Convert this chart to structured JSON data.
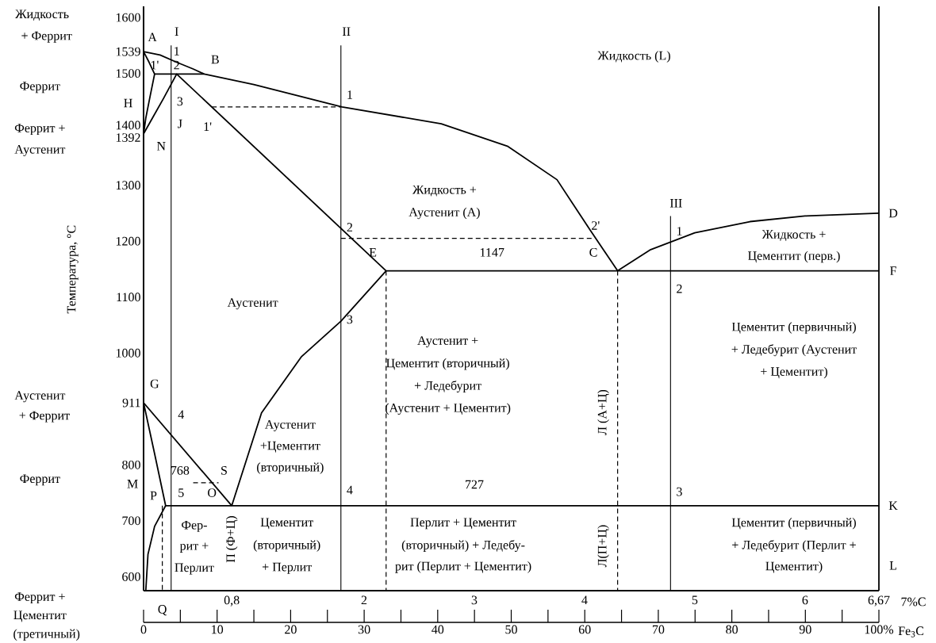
{
  "chart_data": {
    "type": "line",
    "xlabel": "7%C",
    "ylabel": "Температура, °C",
    "x2label": "Fe$_{3}$C",
    "xlim": [
      0,
      6.67
    ],
    "ylim": [
      575,
      1620
    ],
    "x2lim": [
      0,
      100
    ],
    "xticks": [
      {
        "value": 0.8,
        "label": "0,8"
      },
      2,
      3,
      4,
      5,
      6,
      {
        "value": 6.67,
        "label": "6,67"
      }
    ],
    "yticks": [
      600,
      700,
      800,
      911,
      1000,
      1100,
      1200,
      1300,
      1392,
      1400,
      1500,
      1539,
      1600
    ],
    "x2ticks": [
      0,
      10,
      20,
      30,
      40,
      50,
      60,
      70,
      80,
      90,
      {
        "value": 100,
        "label": "100%"
      }
    ],
    "marker": "none",
    "line_style": "solid",
    "series": [
      {
        "color": "#000000",
        "x": [
          0,
          0.15,
          0.3,
          0.45,
          0.55,
          1,
          1.8,
          2.7,
          3.3,
          3.75,
          4.05,
          4.3,
          4.6,
          5,
          5.5,
          6,
          6.67
        ],
        "values": [
          1539,
          1533,
          1520,
          1508,
          1499,
          1480,
          1440,
          1410,
          1370,
          1310,
          1220,
          1147,
          1185,
          1215,
          1235,
          1245,
          1250
        ]
      },
      {
        "color": "#000000",
        "x": [
          0,
          0.05,
          0.1,
          0.06,
          0.02,
          0
        ],
        "values": [
          1539,
          1520,
          1499,
          1460,
          1420,
          1392
        ]
      },
      {
        "color": "#000000",
        "x": [
          0.1,
          0.55
        ],
        "values": [
          1499,
          1499
        ]
      },
      {
        "color": "#000000",
        "x": [
          0,
          0.08,
          0.18,
          0.3,
          2.2,
          6.67
        ],
        "values": [
          1392,
          1420,
          1455,
          1499,
          1147,
          1147
        ]
      },
      {
        "color": "#000000",
        "x": [
          0.8,
          1.07,
          1.43,
          1.79,
          2.2
        ],
        "values": [
          727,
          893,
          993,
          1057,
          1147
        ]
      },
      {
        "color": "#000000",
        "x": [
          0,
          0.8
        ],
        "values": [
          911,
          727
        ]
      },
      {
        "color": "#000000",
        "x": [
          0,
          0.1,
          0.2,
          0.1,
          0.04,
          0.02
        ],
        "values": [
          911,
          820,
          727,
          690,
          640,
          575
        ]
      },
      {
        "color": "#000000",
        "x": [
          0.2,
          6.67
        ],
        "values": [
          727,
          727
        ]
      },
      {
        "color": "#000000",
        "x": [
          6.67,
          6.67
        ],
        "values": [
          575,
          1620
        ]
      },
      {
        "color": "#000000",
        "x": [
          0.25,
          0.25
        ],
        "values": [
          575,
          1550
        ]
      },
      {
        "color": "#000000",
        "x": [
          1.79,
          1.79
        ],
        "values": [
          575,
          1550
        ]
      },
      {
        "color": "#000000",
        "x": [
          4.78,
          4.78
        ],
        "values": [
          575,
          1245
        ]
      },
      {
        "color": "#000000",
        "line_style": "dashed",
        "x": [
          0.17,
          0.17
        ],
        "values": [
          727,
          575
        ]
      },
      {
        "color": "#000000",
        "line_style": "dashed",
        "x": [
          2.2,
          2.2
        ],
        "values": [
          1147,
          575
        ]
      },
      {
        "color": "#000000",
        "line_style": "dashed",
        "x": [
          4.3,
          4.3
        ],
        "values": [
          1147,
          575
        ]
      },
      {
        "color": "#000000",
        "line_style": "dashed",
        "x": [
          0.62,
          1.79
        ],
        "values": [
          1440,
          1440
        ]
      },
      {
        "color": "#000000",
        "line_style": "dashed",
        "x": [
          1.79,
          4.07
        ],
        "values": [
          1205,
          1205
        ]
      },
      {
        "color": "#000000",
        "line_style": "dashed",
        "x": [
          0.45,
          0.68
        ],
        "values": [
          768,
          768
        ]
      }
    ],
    "annotations": [
      "Жидкость (L)",
      "I",
      "1",
      "2",
      "3",
      "J",
      "A",
      "B",
      "H",
      "N",
      "1'",
      "1'",
      "II",
      "1",
      "2",
      "3",
      "4",
      "2'",
      "III",
      "1",
      "2",
      "3",
      "D",
      "F",
      "K",
      "L",
      "E",
      "C",
      "1147",
      "727",
      "G",
      "4",
      "768",
      "5",
      "O",
      "S",
      "P",
      "Q",
      "M",
      "Аустенит",
      "Жидкость +",
      "Аустенит (A)",
      "Жидкость +",
      "Цементит (перв.)",
      "Аустенит +",
      "Цементит (вторичный)",
      "+ Ледебурит",
      "(Аустенит + Цементит)",
      "Цементит (первичный)",
      "+ Ледебурит (Аустенит",
      "+ Цементит)",
      "Аустенит",
      "+Цементит",
      "(вторичный)",
      "Фер-",
      "рит +",
      "Перлит",
      "Цементит",
      "(вторичный)",
      "+ Перлит",
      "Перлит + Цементит",
      "(вторичный) + Ледебу-",
      "рит (Перлит + Цементит)",
      "Цементит (первичный)",
      "+ Ледебурит (Перлит +",
      "Цементит)",
      "Жидкость",
      "+ Феррит",
      "Феррит",
      "Феррит +",
      "Аустенит",
      "Аустенит",
      "+ Феррит",
      "Феррит",
      "Феррит +",
      "Цементит",
      "(третичный)",
      "П (Ф+Ц)",
      "Л (А+Ц)",
      "Л(П+Ц)"
    ]
  }
}
